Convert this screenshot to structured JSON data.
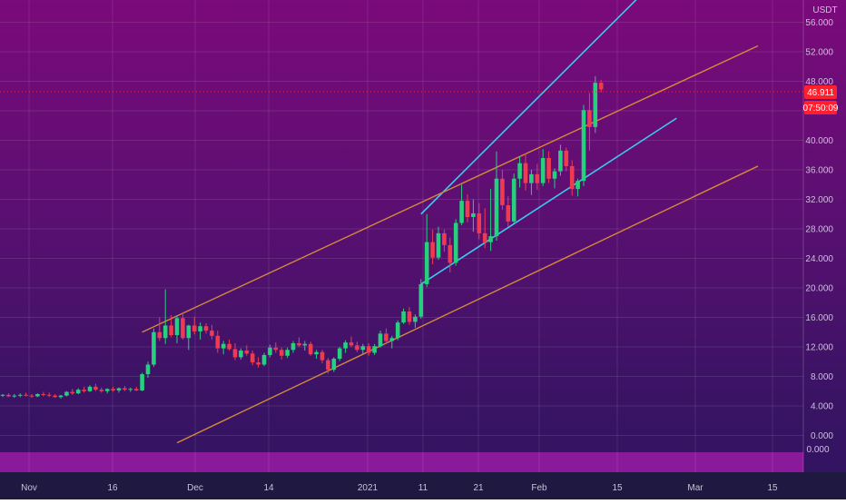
{
  "colors": {
    "bull": "#26d07c",
    "bear": "#ef3b50",
    "channel_blue": "#3fc8ef",
    "channel_orange": "#d48a3a",
    "last_price_bg": "#ff1f2e",
    "text": "#c9c3d8",
    "grid": "rgba(255,255,255,0.10)"
  },
  "axis": {
    "currency": "USDT",
    "y_ticks": [
      "56.000",
      "52.000",
      "48.000",
      "44.000",
      "40.000",
      "36.000",
      "32.000",
      "28.000",
      "24.000",
      "20.000",
      "16.000",
      "12.000",
      "8.000",
      "4.000",
      "0.000"
    ],
    "x_ticks": [
      "Nov",
      "16",
      "Dec",
      "14",
      "2021",
      "11",
      "21",
      "Feb",
      "15",
      "Mar",
      "15"
    ],
    "sub_pane_tick": "0.000"
  },
  "last_price": {
    "value": "46.911",
    "countdown": "07:50:09"
  },
  "chart_data": {
    "type": "candlestick",
    "title": "",
    "ylim": [
      -2,
      60
    ],
    "grid": true,
    "candles": [
      [
        5.4,
        5.6,
        5.2,
        5.5
      ],
      [
        5.5,
        5.7,
        5.2,
        5.3
      ],
      [
        5.3,
        5.6,
        5.1,
        5.4
      ],
      [
        5.4,
        5.7,
        5.2,
        5.5
      ],
      [
        5.5,
        5.8,
        5.3,
        5.4
      ],
      [
        5.4,
        5.6,
        5.1,
        5.3
      ],
      [
        5.3,
        5.7,
        5.2,
        5.6
      ],
      [
        5.6,
        5.9,
        5.3,
        5.5
      ],
      [
        5.5,
        5.8,
        5.2,
        5.4
      ],
      [
        5.4,
        5.6,
        5.1,
        5.2
      ],
      [
        5.2,
        5.5,
        5.0,
        5.4
      ],
      [
        5.4,
        6.0,
        5.3,
        5.9
      ],
      [
        5.9,
        6.3,
        5.5,
        5.7
      ],
      [
        5.7,
        6.4,
        5.6,
        6.2
      ],
      [
        6.2,
        6.6,
        5.8,
        6.0
      ],
      [
        6.0,
        6.8,
        5.9,
        6.6
      ],
      [
        6.6,
        7.0,
        6.0,
        6.2
      ],
      [
        6.2,
        6.5,
        5.8,
        6.0
      ],
      [
        6.0,
        6.4,
        5.7,
        6.3
      ],
      [
        6.3,
        6.6,
        5.9,
        6.1
      ],
      [
        6.1,
        6.5,
        5.8,
        6.4
      ],
      [
        6.4,
        6.7,
        6.0,
        6.2
      ],
      [
        6.2,
        6.5,
        5.9,
        6.3
      ],
      [
        6.3,
        6.6,
        6.0,
        6.1
      ],
      [
        6.1,
        8.5,
        6.0,
        8.3
      ],
      [
        8.3,
        10.0,
        7.8,
        9.6
      ],
      [
        9.6,
        14.5,
        9.3,
        14.0
      ],
      [
        14.0,
        16.0,
        12.8,
        13.2
      ],
      [
        13.2,
        19.8,
        12.4,
        14.9
      ],
      [
        14.9,
        16.3,
        13.3,
        13.6
      ],
      [
        13.6,
        16.2,
        12.5,
        15.9
      ],
      [
        15.9,
        16.7,
        13.0,
        13.2
      ],
      [
        13.2,
        15.0,
        11.6,
        14.9
      ],
      [
        14.9,
        16.1,
        13.7,
        14.1
      ],
      [
        14.1,
        15.3,
        13.0,
        14.8
      ],
      [
        14.8,
        15.2,
        13.8,
        14.2
      ],
      [
        14.2,
        15.0,
        13.0,
        13.5
      ],
      [
        13.5,
        14.2,
        11.2,
        11.8
      ],
      [
        11.8,
        12.8,
        11.0,
        12.4
      ],
      [
        12.4,
        13.0,
        11.5,
        11.7
      ],
      [
        11.7,
        12.5,
        10.2,
        10.6
      ],
      [
        10.6,
        11.8,
        10.3,
        11.5
      ],
      [
        11.5,
        12.2,
        10.8,
        11.1
      ],
      [
        11.1,
        11.5,
        9.5,
        9.9
      ],
      [
        9.9,
        10.6,
        9.2,
        9.6
      ],
      [
        9.6,
        11.2,
        9.4,
        10.9
      ],
      [
        10.9,
        12.3,
        10.6,
        11.9
      ],
      [
        11.9,
        12.6,
        11.2,
        11.6
      ],
      [
        11.6,
        11.9,
        10.3,
        10.8
      ],
      [
        10.8,
        11.9,
        10.5,
        11.6
      ],
      [
        11.6,
        12.8,
        11.2,
        12.5
      ],
      [
        12.5,
        13.3,
        12.0,
        12.2
      ],
      [
        12.2,
        12.8,
        11.5,
        12.4
      ],
      [
        12.4,
        12.7,
        10.8,
        11.0
      ],
      [
        11.0,
        11.6,
        10.4,
        11.3
      ],
      [
        11.3,
        11.6,
        9.8,
        10.2
      ],
      [
        10.2,
        10.5,
        8.4,
        8.9
      ],
      [
        8.9,
        10.6,
        8.6,
        10.4
      ],
      [
        10.4,
        12.0,
        10.1,
        11.8
      ],
      [
        11.8,
        12.9,
        11.2,
        12.6
      ],
      [
        12.6,
        13.4,
        12.0,
        12.2
      ],
      [
        12.2,
        12.7,
        11.3,
        11.6
      ],
      [
        11.6,
        12.4,
        11.0,
        12.1
      ],
      [
        12.1,
        12.5,
        10.8,
        11.2
      ],
      [
        11.2,
        12.4,
        10.9,
        12.1
      ],
      [
        12.1,
        14.2,
        11.9,
        13.8
      ],
      [
        13.8,
        14.5,
        12.4,
        12.8
      ],
      [
        12.8,
        13.5,
        11.8,
        13.2
      ],
      [
        13.2,
        15.6,
        12.9,
        15.3
      ],
      [
        15.3,
        17.2,
        15.1,
        16.8
      ],
      [
        16.8,
        17.4,
        15.0,
        15.4
      ],
      [
        15.4,
        16.4,
        14.6,
        16.1
      ],
      [
        16.1,
        21.2,
        15.8,
        20.5
      ],
      [
        20.5,
        30.0,
        20.1,
        26.2
      ],
      [
        26.2,
        27.9,
        23.2,
        24.1
      ],
      [
        24.1,
        28.3,
        23.8,
        27.4
      ],
      [
        27.4,
        27.9,
        24.9,
        25.8
      ],
      [
        25.8,
        26.8,
        22.1,
        23.4
      ],
      [
        23.4,
        29.3,
        23.0,
        28.8
      ],
      [
        28.8,
        34.0,
        28.5,
        31.8
      ],
      [
        31.8,
        32.7,
        28.9,
        29.6
      ],
      [
        29.6,
        32.0,
        27.6,
        30.1
      ],
      [
        30.1,
        31.5,
        26.6,
        27.4
      ],
      [
        27.4,
        30.8,
        25.4,
        26.2
      ],
      [
        26.2,
        33.4,
        25.0,
        27.0
      ],
      [
        27.0,
        38.5,
        26.4,
        34.8
      ],
      [
        34.8,
        36.0,
        30.6,
        31.2
      ],
      [
        31.2,
        32.4,
        28.3,
        29.0
      ],
      [
        29.0,
        35.5,
        28.8,
        34.8
      ],
      [
        34.8,
        37.8,
        33.6,
        36.9
      ],
      [
        36.9,
        38.2,
        33.2,
        34.2
      ],
      [
        34.2,
        36.0,
        32.6,
        35.4
      ],
      [
        35.4,
        36.8,
        33.3,
        34.2
      ],
      [
        34.2,
        38.8,
        33.8,
        37.6
      ],
      [
        37.6,
        38.5,
        34.2,
        34.8
      ],
      [
        34.8,
        36.2,
        33.5,
        35.8
      ],
      [
        35.8,
        39.4,
        35.2,
        38.6
      ],
      [
        38.6,
        39.0,
        35.8,
        36.5
      ],
      [
        36.5,
        37.3,
        32.5,
        33.4
      ],
      [
        33.4,
        34.8,
        32.4,
        34.5
      ],
      [
        34.5,
        44.8,
        33.8,
        44.1
      ],
      [
        44.1,
        46.4,
        38.6,
        41.8
      ],
      [
        41.8,
        48.7,
        41.0,
        47.8
      ],
      [
        47.8,
        48.2,
        46.5,
        46.9
      ]
    ],
    "trendlines": [
      {
        "color": "blue",
        "from": [
          72,
          30.0
        ],
        "to": [
          123,
          70.0
        ]
      },
      {
        "color": "blue",
        "from": [
          72,
          20.5
        ],
        "to": [
          116,
          43.0
        ]
      },
      {
        "color": "orange",
        "from": [
          24,
          14.0
        ],
        "to": [
          130,
          52.8
        ]
      },
      {
        "color": "orange",
        "from": [
          30,
          -1.0
        ],
        "to": [
          130,
          36.5
        ]
      }
    ]
  }
}
